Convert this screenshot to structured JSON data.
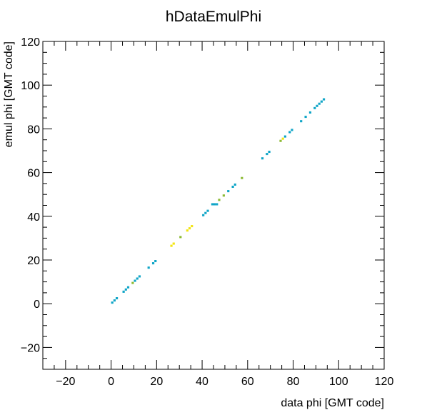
{
  "chart_data": {
    "type": "heatmap",
    "title": "hDataEmulPhi",
    "xlabel": "data phi [GMT code]",
    "ylabel": "emul phi [GMT code]",
    "xlim": [
      -30,
      120
    ],
    "ylim": [
      -30,
      120
    ],
    "x_major_ticks": [
      -20,
      0,
      20,
      40,
      60,
      80,
      100,
      120
    ],
    "y_major_ticks": [
      -20,
      0,
      20,
      40,
      60,
      80,
      100,
      120
    ],
    "x_tick_labels": [
      "−20",
      "0",
      "20",
      "40",
      "60",
      "80",
      "100",
      "120"
    ],
    "y_tick_labels": [
      "−20",
      "0",
      "20",
      "40",
      "60",
      "80",
      "100",
      "120"
    ],
    "grid": false,
    "legend": "none",
    "cell_colors": {
      "cyan": "#0fa5c7",
      "green": "#8cba34",
      "yellow": "#f2e411"
    },
    "cells": [
      {
        "x": 0,
        "y": 0,
        "color": "cyan"
      },
      {
        "x": 1,
        "y": 1,
        "color": "cyan"
      },
      {
        "x": 2,
        "y": 2,
        "color": "cyan"
      },
      {
        "x": 5,
        "y": 5,
        "color": "cyan"
      },
      {
        "x": 6,
        "y": 6,
        "color": "cyan"
      },
      {
        "x": 7,
        "y": 7,
        "color": "cyan"
      },
      {
        "x": 9,
        "y": 9,
        "color": "green"
      },
      {
        "x": 10,
        "y": 10,
        "color": "cyan"
      },
      {
        "x": 11,
        "y": 11,
        "color": "cyan"
      },
      {
        "x": 12,
        "y": 12,
        "color": "cyan"
      },
      {
        "x": 16,
        "y": 16,
        "color": "cyan"
      },
      {
        "x": 18,
        "y": 18,
        "color": "cyan"
      },
      {
        "x": 19,
        "y": 19,
        "color": "cyan"
      },
      {
        "x": 26,
        "y": 26,
        "color": "yellow"
      },
      {
        "x": 27,
        "y": 27,
        "color": "yellow"
      },
      {
        "x": 30,
        "y": 30,
        "color": "green"
      },
      {
        "x": 33,
        "y": 33,
        "color": "yellow"
      },
      {
        "x": 34,
        "y": 34,
        "color": "yellow"
      },
      {
        "x": 35,
        "y": 35,
        "color": "yellow"
      },
      {
        "x": 40,
        "y": 40,
        "color": "cyan"
      },
      {
        "x": 41,
        "y": 41,
        "color": "cyan"
      },
      {
        "x": 42,
        "y": 42,
        "color": "cyan"
      },
      {
        "x": 44,
        "y": 45,
        "color": "cyan"
      },
      {
        "x": 45,
        "y": 45,
        "color": "cyan"
      },
      {
        "x": 46,
        "y": 45,
        "color": "cyan"
      },
      {
        "x": 47,
        "y": 47,
        "color": "green"
      },
      {
        "x": 49,
        "y": 49,
        "color": "green"
      },
      {
        "x": 51,
        "y": 51,
        "color": "cyan"
      },
      {
        "x": 53,
        "y": 53,
        "color": "cyan"
      },
      {
        "x": 54,
        "y": 54,
        "color": "cyan"
      },
      {
        "x": 57,
        "y": 57,
        "color": "green"
      },
      {
        "x": 66,
        "y": 66,
        "color": "cyan"
      },
      {
        "x": 68,
        "y": 68,
        "color": "cyan"
      },
      {
        "x": 69,
        "y": 69,
        "color": "cyan"
      },
      {
        "x": 74,
        "y": 74,
        "color": "green"
      },
      {
        "x": 75,
        "y": 75,
        "color": "yellow"
      },
      {
        "x": 76,
        "y": 76,
        "color": "cyan"
      },
      {
        "x": 78,
        "y": 78,
        "color": "cyan"
      },
      {
        "x": 79,
        "y": 79,
        "color": "cyan"
      },
      {
        "x": 83,
        "y": 83,
        "color": "cyan"
      },
      {
        "x": 85,
        "y": 85,
        "color": "cyan"
      },
      {
        "x": 87,
        "y": 87,
        "color": "cyan"
      },
      {
        "x": 89,
        "y": 89,
        "color": "cyan"
      },
      {
        "x": 90,
        "y": 90,
        "color": "cyan"
      },
      {
        "x": 91,
        "y": 91,
        "color": "cyan"
      },
      {
        "x": 92,
        "y": 92,
        "color": "cyan"
      },
      {
        "x": 93,
        "y": 93,
        "color": "cyan"
      }
    ]
  }
}
